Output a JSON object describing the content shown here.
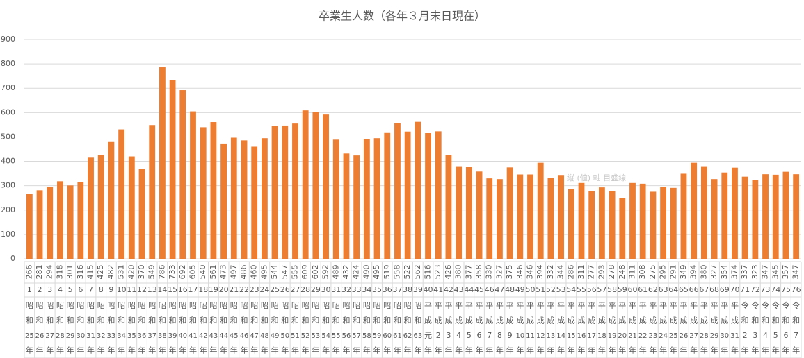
{
  "chart_data": {
    "type": "bar",
    "title": "卒業生人数（各年３月末日現在）",
    "tooltip": "縦 (値) 軸 目盛線",
    "color": "#ed7d31",
    "ylim": [
      0,
      900
    ],
    "yticks": [
      0,
      100,
      200,
      300,
      400,
      500,
      600,
      700,
      800,
      900
    ],
    "grid": true,
    "values": [
      266,
      281,
      294,
      318,
      301,
      316,
      415,
      425,
      482,
      531,
      420,
      370,
      549,
      786,
      733,
      692,
      605,
      540,
      561,
      473,
      497,
      486,
      460,
      495,
      544,
      547,
      555,
      609,
      602,
      592,
      489,
      432,
      424,
      490,
      495,
      519,
      558,
      522,
      562,
      516,
      523,
      426,
      380,
      377,
      358,
      330,
      327,
      375,
      346,
      346,
      394,
      332,
      344,
      286,
      311,
      277,
      293,
      278,
      248,
      311,
      308,
      275,
      295,
      291,
      349,
      394,
      380,
      327,
      354,
      374,
      337,
      323,
      347,
      345,
      357,
      347
    ],
    "numbers": [
      1,
      2,
      3,
      4,
      5,
      6,
      7,
      8,
      9,
      10,
      11,
      12,
      13,
      14,
      15,
      16,
      17,
      18,
      19,
      20,
      21,
      22,
      23,
      24,
      25,
      26,
      27,
      28,
      29,
      30,
      31,
      32,
      33,
      34,
      35,
      36,
      37,
      38,
      39,
      40,
      41,
      42,
      43,
      44,
      45,
      46,
      47,
      48,
      49,
      50,
      51,
      52,
      53,
      54,
      55,
      56,
      57,
      58,
      59,
      60,
      61,
      62,
      63,
      64,
      65,
      66,
      67,
      68,
      69,
      70,
      71,
      72,
      73,
      74,
      75,
      76
    ],
    "categories": [
      "昭和25年",
      "昭和26年",
      "昭和27年",
      "昭和28年",
      "昭和29年",
      "昭和30年",
      "昭和31年",
      "昭和32年",
      "昭和33年",
      "昭和34年",
      "昭和35年",
      "昭和36年",
      "昭和37年",
      "昭和38年",
      "昭和39年",
      "昭和40年",
      "昭和41年",
      "昭和42年",
      "昭和43年",
      "昭和44年",
      "昭和45年",
      "昭和46年",
      "昭和47年",
      "昭和48年",
      "昭和49年",
      "昭和50年",
      "昭和51年",
      "昭和52年",
      "昭和53年",
      "昭和54年",
      "昭和55年",
      "昭和56年",
      "昭和57年",
      "昭和58年",
      "昭和59年",
      "昭和60年",
      "昭和61年",
      "昭和62年",
      "昭和63年",
      "平成元年",
      "平成2年",
      "平成3年",
      "平成4年",
      "平成5年",
      "平成6年",
      "平成7年",
      "平成8年",
      "平成9年",
      "平成10年",
      "平成11年",
      "平成12年",
      "平成13年",
      "平成14年",
      "平成15年",
      "平成16年",
      "平成17年",
      "平成18年",
      "平成19年",
      "平成20年",
      "平成21年",
      "平成22年",
      "平成23年",
      "平成24年",
      "平成25年",
      "平成26年",
      "平成27年",
      "平成28年",
      "平成29年",
      "平成30年",
      "平成31年",
      "令和2年",
      "令和3年",
      "令和4年",
      "令和5年",
      "令和6年",
      "令和7年"
    ]
  }
}
